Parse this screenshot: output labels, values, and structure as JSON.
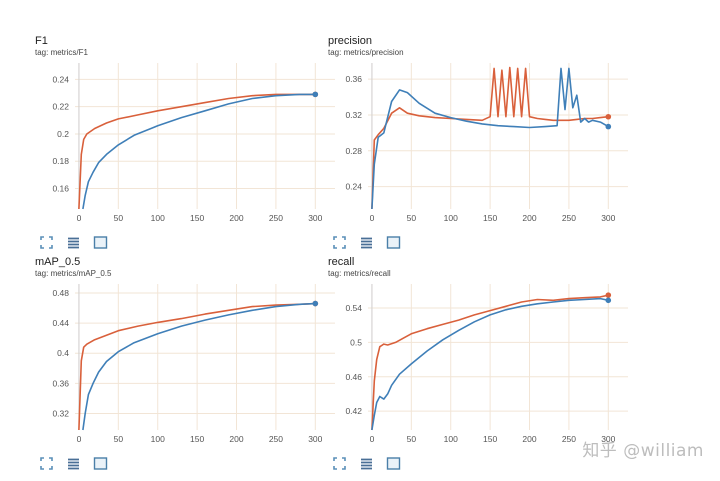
{
  "panels": [
    {
      "title": "F1",
      "tag": "tag: metrics/F1"
    },
    {
      "title": "precision",
      "tag": "tag: metrics/precision"
    },
    {
      "title": "mAP_0.5",
      "tag": "tag: metrics/mAP_0.5"
    },
    {
      "title": "recall",
      "tag": "tag: metrics/recall"
    }
  ],
  "toolbar_icons": [
    "expand-icon",
    "list-icon",
    "fit-domain-icon"
  ],
  "watermark": "知乎 @william",
  "colors": {
    "orange": "#d9603b",
    "blue": "#3f7fb8",
    "grid": "#f2e5d6"
  },
  "chart_data": [
    {
      "type": "line",
      "title": "F1",
      "xticks": [
        "0",
        "50",
        "100",
        "150",
        "200",
        "250",
        "300"
      ],
      "yticks": [
        "0.16",
        "0.18",
        "0.2",
        "0.22",
        "0.24"
      ],
      "xlim": [
        -5,
        325
      ],
      "ylim": [
        0.145,
        0.252
      ],
      "series": [
        {
          "color": "#d9603b",
          "x": [
            0,
            3,
            6,
            10,
            20,
            35,
            50,
            75,
            100,
            130,
            160,
            190,
            220,
            250,
            280,
            300
          ],
          "y": [
            0.145,
            0.185,
            0.196,
            0.2,
            0.204,
            0.208,
            0.211,
            0.214,
            0.217,
            0.22,
            0.223,
            0.226,
            0.228,
            0.229,
            0.229,
            0.229
          ]
        },
        {
          "color": "#3f7fb8",
          "x": [
            5,
            8,
            12,
            18,
            25,
            35,
            50,
            70,
            100,
            130,
            160,
            190,
            220,
            250,
            280,
            300
          ],
          "y": [
            0.145,
            0.155,
            0.165,
            0.172,
            0.179,
            0.185,
            0.192,
            0.199,
            0.206,
            0.212,
            0.217,
            0.222,
            0.226,
            0.228,
            0.229,
            0.229
          ]
        }
      ]
    },
    {
      "type": "line",
      "title": "precision",
      "xticks": [
        "0",
        "50",
        "100",
        "150",
        "200",
        "250",
        "300"
      ],
      "yticks": [
        "0.24",
        "0.28",
        "0.32",
        "0.36"
      ],
      "xlim": [
        -5,
        325
      ],
      "ylim": [
        0.215,
        0.378
      ],
      "series": [
        {
          "color": "#d9603b",
          "x": [
            0,
            3,
            8,
            15,
            25,
            35,
            45,
            60,
            80,
            100,
            120,
            140,
            150,
            155,
            160,
            165,
            170,
            175,
            180,
            185,
            190,
            195,
            200,
            210,
            220,
            230,
            240,
            250,
            260,
            270,
            280,
            290,
            300
          ],
          "y": [
            0.215,
            0.292,
            0.298,
            0.305,
            0.322,
            0.328,
            0.322,
            0.319,
            0.317,
            0.316,
            0.315,
            0.314,
            0.318,
            0.372,
            0.318,
            0.37,
            0.318,
            0.373,
            0.318,
            0.372,
            0.318,
            0.372,
            0.318,
            0.316,
            0.315,
            0.314,
            0.314,
            0.314,
            0.315,
            0.316,
            0.316,
            0.317,
            0.318
          ]
        },
        {
          "color": "#3f7fb8",
          "x": [
            0,
            3,
            8,
            15,
            25,
            35,
            45,
            60,
            80,
            100,
            120,
            140,
            160,
            180,
            200,
            220,
            235,
            240,
            245,
            250,
            255,
            260,
            265,
            270,
            275,
            280,
            290,
            300
          ],
          "y": [
            0.215,
            0.265,
            0.295,
            0.3,
            0.335,
            0.348,
            0.345,
            0.333,
            0.322,
            0.317,
            0.313,
            0.31,
            0.308,
            0.307,
            0.306,
            0.307,
            0.308,
            0.372,
            0.326,
            0.372,
            0.328,
            0.342,
            0.312,
            0.316,
            0.312,
            0.314,
            0.312,
            0.307
          ]
        }
      ]
    },
    {
      "type": "line",
      "title": "mAP_0.5",
      "xticks": [
        "0",
        "50",
        "100",
        "150",
        "200",
        "250",
        "300"
      ],
      "yticks": [
        "0.32",
        "0.36",
        "0.4",
        "0.44",
        "0.48"
      ],
      "xlim": [
        -5,
        325
      ],
      "ylim": [
        0.298,
        0.492
      ],
      "series": [
        {
          "color": "#d9603b",
          "x": [
            0,
            3,
            6,
            10,
            20,
            35,
            50,
            75,
            100,
            130,
            160,
            190,
            220,
            250,
            280,
            300
          ],
          "y": [
            0.298,
            0.39,
            0.408,
            0.412,
            0.418,
            0.424,
            0.43,
            0.436,
            0.441,
            0.446,
            0.452,
            0.457,
            0.462,
            0.464,
            0.465,
            0.466
          ]
        },
        {
          "color": "#3f7fb8",
          "x": [
            5,
            8,
            12,
            18,
            25,
            35,
            50,
            70,
            100,
            130,
            160,
            190,
            220,
            250,
            280,
            300
          ],
          "y": [
            0.298,
            0.32,
            0.345,
            0.36,
            0.375,
            0.389,
            0.402,
            0.414,
            0.426,
            0.436,
            0.444,
            0.451,
            0.457,
            0.462,
            0.465,
            0.466
          ]
        }
      ]
    },
    {
      "type": "line",
      "title": "recall",
      "xticks": [
        "0",
        "50",
        "100",
        "150",
        "200",
        "250",
        "300"
      ],
      "yticks": [
        "0.42",
        "0.46",
        "0.5",
        "0.54"
      ],
      "xlim": [
        -5,
        325
      ],
      "ylim": [
        0.398,
        0.568
      ],
      "series": [
        {
          "color": "#d9603b",
          "x": [
            0,
            3,
            6,
            10,
            15,
            20,
            30,
            40,
            50,
            70,
            90,
            110,
            130,
            150,
            170,
            190,
            210,
            230,
            250,
            270,
            290,
            300
          ],
          "y": [
            0.398,
            0.455,
            0.48,
            0.495,
            0.498,
            0.497,
            0.5,
            0.505,
            0.51,
            0.516,
            0.521,
            0.526,
            0.532,
            0.537,
            0.542,
            0.547,
            0.55,
            0.549,
            0.551,
            0.552,
            0.553,
            0.555
          ]
        },
        {
          "color": "#3f7fb8",
          "x": [
            0,
            3,
            6,
            10,
            15,
            20,
            25,
            35,
            50,
            70,
            90,
            110,
            130,
            150,
            170,
            190,
            210,
            230,
            250,
            270,
            290,
            300
          ],
          "y": [
            0.398,
            0.415,
            0.43,
            0.437,
            0.434,
            0.44,
            0.45,
            0.463,
            0.475,
            0.49,
            0.503,
            0.514,
            0.524,
            0.532,
            0.538,
            0.542,
            0.545,
            0.547,
            0.549,
            0.55,
            0.551,
            0.549
          ]
        }
      ]
    }
  ]
}
